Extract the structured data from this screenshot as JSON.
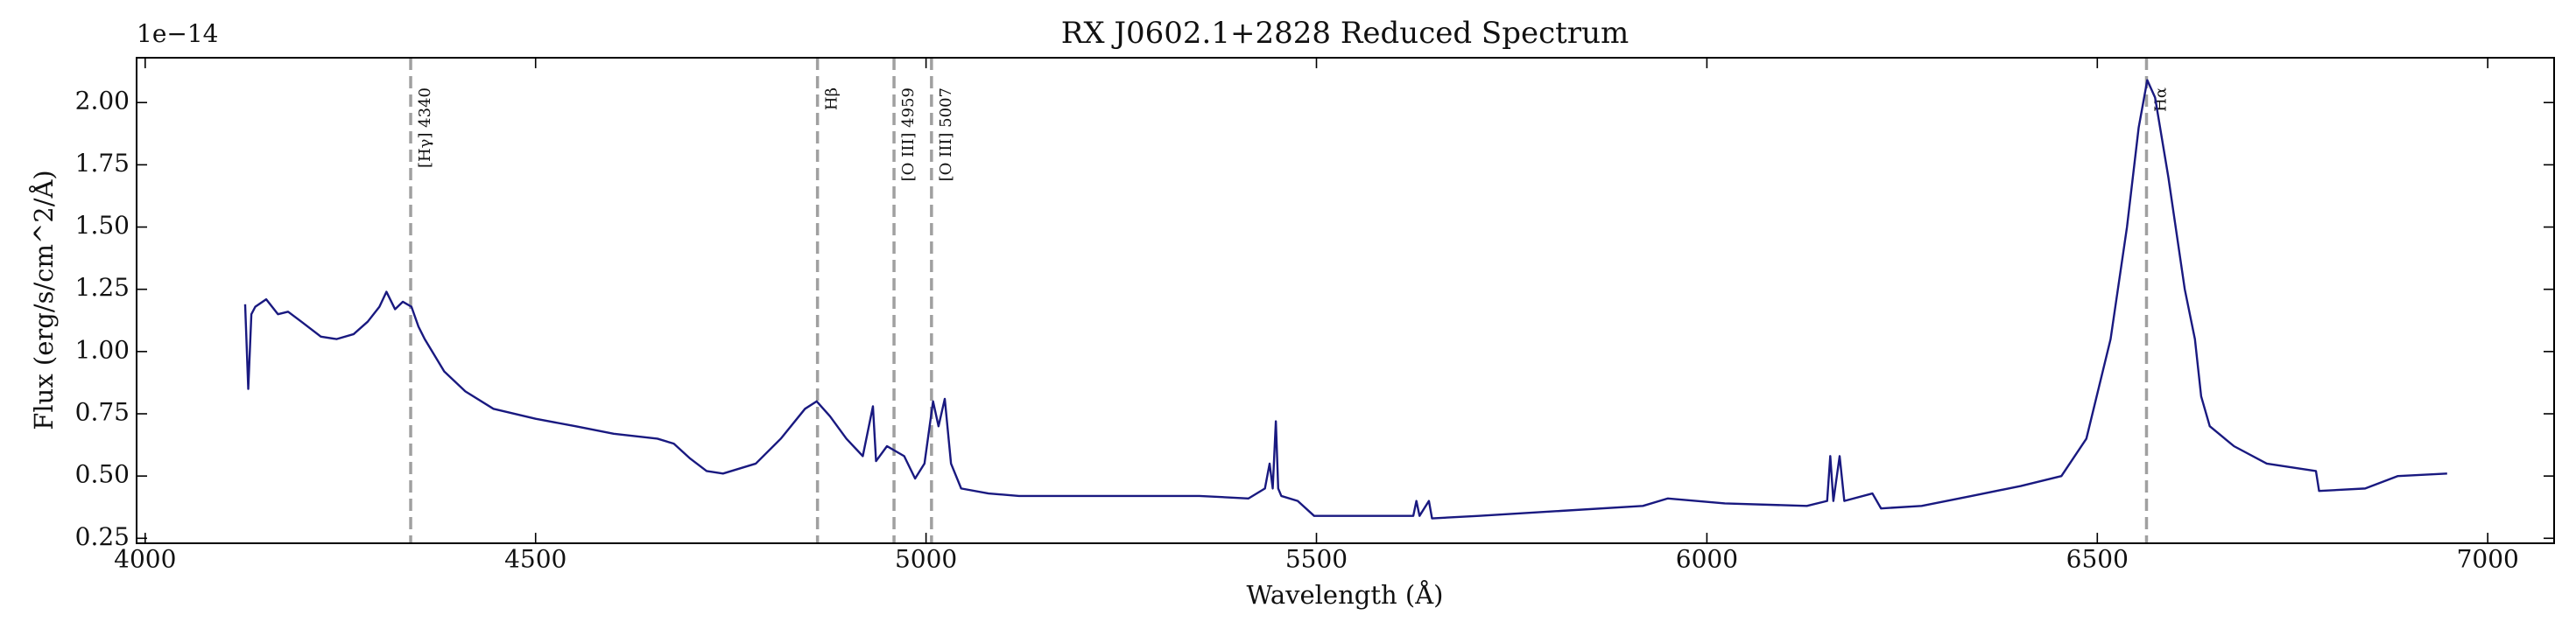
{
  "chart_data": {
    "type": "line",
    "title": "RX J0602.1+2828 Reduced Spectrum",
    "x_label": "Wavelength (Å)",
    "y_label": "Flux (erg/s/cm^2/Å)",
    "y_offset_label": "1e−14",
    "color": "#191980",
    "xlim": [
      3989,
      7085
    ],
    "ylim": [
      0.23,
      2.18
    ],
    "xticks": [
      4000,
      4500,
      5000,
      5500,
      6000,
      6500,
      7000
    ],
    "yticks": [
      0.25,
      {
        "value": 0.5,
        "label": "0.50"
      },
      0.75,
      {
        "value": 1,
        "label": "1.00"
      },
      1.25,
      {
        "value": 1.5,
        "label": "1.50"
      },
      1.75,
      {
        "value": 2,
        "label": "2.00"
      }
    ],
    "lines": [
      {
        "x": 4340,
        "label": "[Hγ] 4340"
      },
      {
        "x": 4861,
        "label": "Hβ"
      },
      {
        "x": 4959,
        "label": "[O III] 4959"
      },
      {
        "x": 5007,
        "label": "[O III] 5007"
      },
      {
        "x": 6563,
        "label": "Hα"
      }
    ],
    "line_color": "#a0a0a0",
    "x": [
      4128,
      4132,
      4136,
      4141,
      4155,
      4170,
      4183,
      4200,
      4225,
      4245,
      4267,
      4285,
      4300,
      4309,
      4320,
      4330,
      4341,
      4350,
      4358,
      4383,
      4410,
      4446,
      4500,
      4551,
      4600,
      4656,
      4677,
      4698,
      4719,
      4740,
      4782,
      4814,
      4845,
      4860,
      4877,
      4898,
      4919,
      4932,
      4936,
      4950,
      4972,
      4986,
      4998,
      5009,
      5016,
      5024,
      5032,
      5045,
      5080,
      5119,
      5200,
      5287,
      5350,
      5413,
      5434,
      5440,
      5444,
      5448,
      5451,
      5455,
      5476,
      5497,
      5560,
      5624,
      5628,
      5632,
      5644,
      5648,
      5708,
      5813,
      5918,
      5950,
      6023,
      6128,
      6154,
      6158,
      6162,
      6170,
      6176,
      6212,
      6223,
      6275,
      6339,
      6402,
      6454,
      6486,
      6517,
      6538,
      6553,
      6564,
      6574,
      6591,
      6612,
      6625,
      6633,
      6644,
      6675,
      6717,
      6780,
      6784,
      6843,
      6885,
      6948
    ],
    "values": [
      1.19,
      0.85,
      1.15,
      1.18,
      1.21,
      1.15,
      1.16,
      1.12,
      1.06,
      1.05,
      1.07,
      1.12,
      1.18,
      1.24,
      1.17,
      1.2,
      1.18,
      1.1,
      1.05,
      0.92,
      0.84,
      0.77,
      0.73,
      0.7,
      0.67,
      0.65,
      0.63,
      0.57,
      0.52,
      0.51,
      0.55,
      0.65,
      0.77,
      0.8,
      0.74,
      0.65,
      0.58,
      0.78,
      0.56,
      0.62,
      0.58,
      0.49,
      0.55,
      0.8,
      0.7,
      0.81,
      0.55,
      0.45,
      0.43,
      0.42,
      0.42,
      0.42,
      0.42,
      0.41,
      0.45,
      0.55,
      0.45,
      0.72,
      0.45,
      0.42,
      0.4,
      0.34,
      0.34,
      0.34,
      0.4,
      0.34,
      0.4,
      0.33,
      0.34,
      0.36,
      0.38,
      0.41,
      0.39,
      0.38,
      0.4,
      0.58,
      0.4,
      0.58,
      0.4,
      0.43,
      0.37,
      0.38,
      0.42,
      0.46,
      0.5,
      0.65,
      1.05,
      1.5,
      1.9,
      2.09,
      2.02,
      1.7,
      1.25,
      1.05,
      0.82,
      0.7,
      0.62,
      0.55,
      0.52,
      0.44,
      0.45,
      0.5,
      0.51
    ]
  }
}
